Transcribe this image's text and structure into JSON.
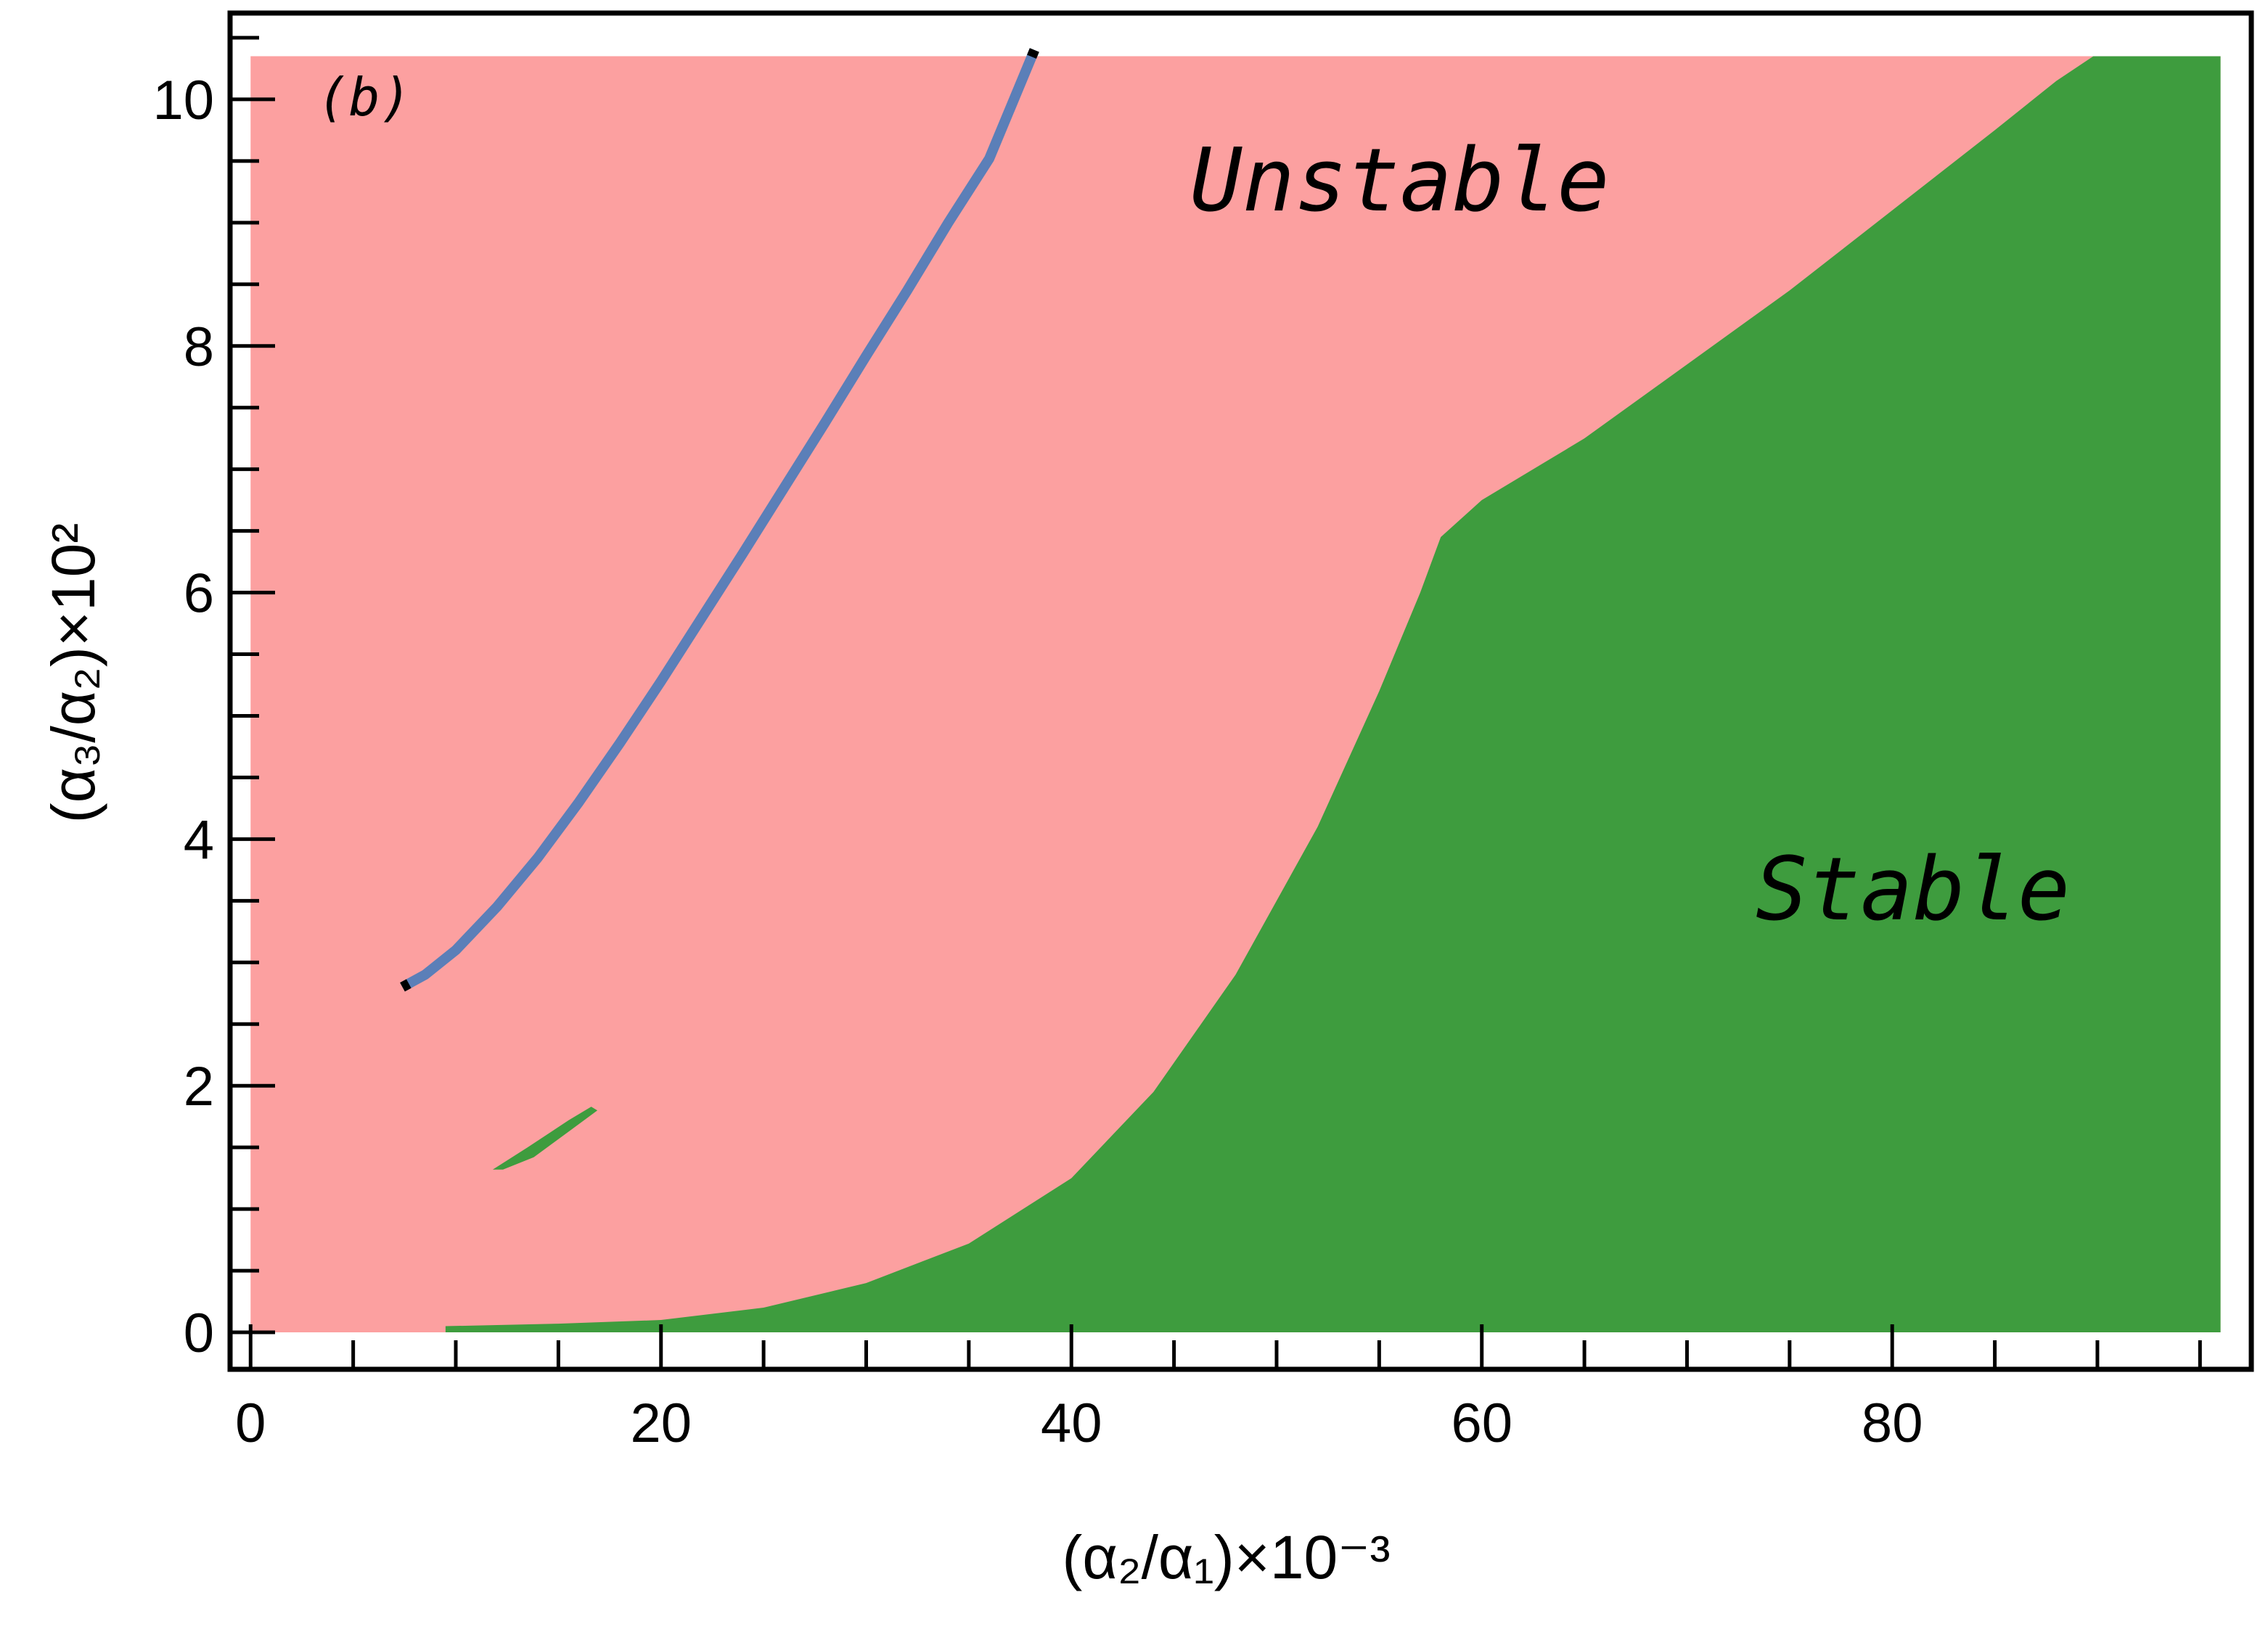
{
  "chart_data": {
    "type": "area",
    "title": "",
    "panel_label": "(b)",
    "xlabel": "(α₂/α₁)×10⁻³",
    "ylabel": "(α₃/α₂)×10²",
    "xlim": [
      -1,
      97.5
    ],
    "ylim": [
      -0.3,
      10.7
    ],
    "x_ticks": [
      0,
      20,
      40,
      60,
      80
    ],
    "x_tick_labels": [
      "0",
      "20",
      "40",
      "60",
      "80"
    ],
    "y_ticks": [
      0,
      2,
      4,
      6,
      8,
      10
    ],
    "y_tick_labels": [
      "0",
      "2",
      "4",
      "6",
      "8",
      "10"
    ],
    "x_minor_step": 5,
    "y_minor_step": 0.5,
    "grid": false,
    "data_extent": {
      "x": [
        0,
        96
      ],
      "y": [
        0,
        10.35
      ]
    },
    "regions": [
      {
        "name": "Unstable",
        "color": "#fca0a0"
      },
      {
        "name": "Stable",
        "color": "#3e9c3e"
      }
    ],
    "stability_boundary": {
      "x": [
        9.5,
        15,
        20,
        25,
        30,
        35,
        40,
        44,
        48,
        52,
        55,
        57,
        58,
        60,
        65,
        70,
        75,
        80,
        85,
        88,
        89.8
      ],
      "y": [
        0.05,
        0.07,
        0.1,
        0.2,
        0.4,
        0.72,
        1.25,
        1.95,
        2.9,
        4.1,
        5.2,
        6.0,
        6.45,
        6.75,
        7.25,
        7.85,
        8.45,
        9.1,
        9.75,
        10.15,
        10.35
      ]
    },
    "stable_island": {
      "x": [
        11.8,
        13.5,
        15.5,
        16.6,
        16.9,
        15.6,
        13.8,
        12.3
      ],
      "y": [
        1.32,
        1.5,
        1.72,
        1.83,
        1.8,
        1.64,
        1.42,
        1.32
      ]
    },
    "series": [
      {
        "color": "#5b7fb8",
        "x": [
          7.4,
          8.5,
          10,
          12,
          14,
          16,
          18,
          20,
          22,
          24,
          26,
          28,
          30,
          32,
          34,
          36,
          38.2
        ],
        "y": [
          2.8,
          2.9,
          3.1,
          3.45,
          3.85,
          4.3,
          4.78,
          5.28,
          5.8,
          6.32,
          6.85,
          7.38,
          7.92,
          8.45,
          9.0,
          9.52,
          10.4
        ]
      }
    ],
    "annotations": [
      {
        "text": "Unstable",
        "x": 56,
        "y": 9.1
      },
      {
        "text": "Stable",
        "x": 81,
        "y": 3.35
      }
    ]
  }
}
